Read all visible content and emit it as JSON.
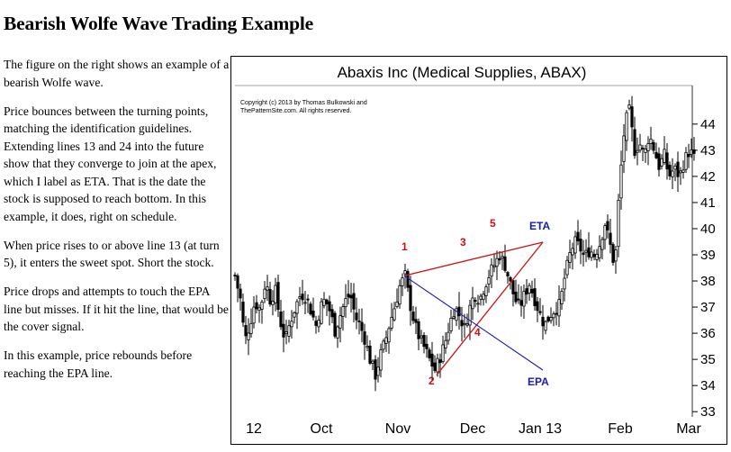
{
  "page": {
    "title": "Bearish Wolfe Wave Trading Example"
  },
  "article": {
    "paragraphs": [
      "The figure on the right shows an example of a bearish Wolfe wave.",
      "Price bounces between the turning points, matching the identification guidelines. Extending lines 13 and 24 into the future show that they converge to join at the apex, which I label as ETA. That is the date the stock is supposed to reach bottom. In this example, it does, right on schedule.",
      "When price rises to or above line 13 (at turn 5), it enters the sweet spot. Short the stock.",
      "Price drops and attempts to touch the EPA line but misses. If it hit the line, that would be the cover signal.",
      "In this example, price rebounds before reaching the EPA line."
    ]
  },
  "chart_data": {
    "type": "candlestick",
    "title": "Abaxis Inc (Medical Supplies, ABAX)",
    "copyright": [
      "Copyright (c) 2013 by Thomas Bulkowski and",
      "ThePatternSite.com.  All rights reserved."
    ],
    "x_ticks": [
      "12",
      "Oct",
      "Nov",
      "Dec",
      "Jan 13",
      "Feb",
      "Mar"
    ],
    "y_ticks": [
      33,
      34,
      35,
      36,
      37,
      38,
      39,
      40,
      41,
      42,
      43,
      44
    ],
    "ylim": [
      32.8,
      45.2
    ],
    "y_axis_position": "right",
    "price_path": [
      [
        0,
        38.2
      ],
      [
        6,
        37.3
      ],
      [
        11,
        35.7
      ],
      [
        17,
        36.4
      ],
      [
        22,
        37.2
      ],
      [
        28,
        36.9
      ],
      [
        34,
        38.0
      ],
      [
        39,
        37.3
      ],
      [
        45,
        37.6
      ],
      [
        50,
        36.5
      ],
      [
        56,
        35.7
      ],
      [
        61,
        36.4
      ],
      [
        67,
        37.0
      ],
      [
        73,
        37.5
      ],
      [
        79,
        37.4
      ],
      [
        85,
        36.8
      ],
      [
        90,
        36.3
      ],
      [
        95,
        37.0
      ],
      [
        100,
        37.3
      ],
      [
        106,
        36.8
      ],
      [
        111,
        36.1
      ],
      [
        117,
        36.7
      ],
      [
        122,
        37.2
      ],
      [
        128,
        37.5
      ],
      [
        134,
        36.6
      ],
      [
        139,
        36.3
      ],
      [
        145,
        35.7
      ],
      [
        150,
        35.0
      ],
      [
        156,
        34.4
      ],
      [
        162,
        35.2
      ],
      [
        167,
        35.7
      ],
      [
        172,
        36.4
      ],
      [
        178,
        37.1
      ],
      [
        183,
        37.8
      ],
      [
        189,
        38.2
      ],
      [
        194,
        37.2
      ],
      [
        200,
        36.3
      ],
      [
        205,
        35.8
      ],
      [
        211,
        35.4
      ],
      [
        216,
        35.0
      ],
      [
        222,
        34.6
      ],
      [
        227,
        35.0
      ],
      [
        233,
        35.6
      ],
      [
        238,
        36.3
      ],
      [
        244,
        37.0
      ],
      [
        249,
        36.7
      ],
      [
        255,
        36.2
      ],
      [
        261,
        37.0
      ],
      [
        266,
        37.5
      ],
      [
        272,
        37.3
      ],
      [
        277,
        37.8
      ],
      [
        283,
        38.3
      ],
      [
        288,
        38.6
      ],
      [
        294,
        39.0
      ],
      [
        300,
        38.6
      ],
      [
        305,
        38.0
      ],
      [
        311,
        37.3
      ],
      [
        316,
        37.0
      ],
      [
        322,
        37.5
      ],
      [
        327,
        37.9
      ],
      [
        333,
        37.3
      ],
      [
        338,
        36.8
      ],
      [
        344,
        36.3
      ],
      [
        350,
        36.7
      ],
      [
        355,
        36.9
      ],
      [
        361,
        37.1
      ],
      [
        366,
        38.1
      ],
      [
        372,
        39.0
      ],
      [
        377,
        39.5
      ],
      [
        383,
        39.3
      ],
      [
        388,
        38.9
      ],
      [
        394,
        39.2
      ],
      [
        399,
        39.0
      ],
      [
        405,
        39.4
      ],
      [
        411,
        40.2
      ],
      [
        416,
        39.5
      ],
      [
        422,
        38.5
      ],
      [
        427,
        41.6
      ],
      [
        433,
        44.0
      ],
      [
        438,
        44.5
      ],
      [
        444,
        43.0
      ],
      [
        449,
        43.3
      ],
      [
        455,
        42.8
      ],
      [
        460,
        43.6
      ],
      [
        466,
        43.0
      ],
      [
        471,
        42.4
      ],
      [
        477,
        42.8
      ],
      [
        482,
        42.0
      ],
      [
        488,
        42.3
      ],
      [
        494,
        42.0
      ],
      [
        499,
        42.6
      ],
      [
        505,
        43.0
      ],
      [
        510,
        42.7
      ]
    ],
    "turn_points": [
      {
        "label": "1",
        "price": 38.2
      },
      {
        "label": "2",
        "price": 34.4
      },
      {
        "label": "3",
        "price": 38.9
      },
      {
        "label": "4",
        "price": 36.1
      },
      {
        "label": "5",
        "price": 39.4
      }
    ],
    "line_labels": [
      "ETA",
      "EPA"
    ],
    "colors": {
      "candles": "#000000",
      "wolfe_lines": "#cc1111",
      "epa_line": "#1b1bb0",
      "eta_label": "#1b1bb0"
    }
  }
}
